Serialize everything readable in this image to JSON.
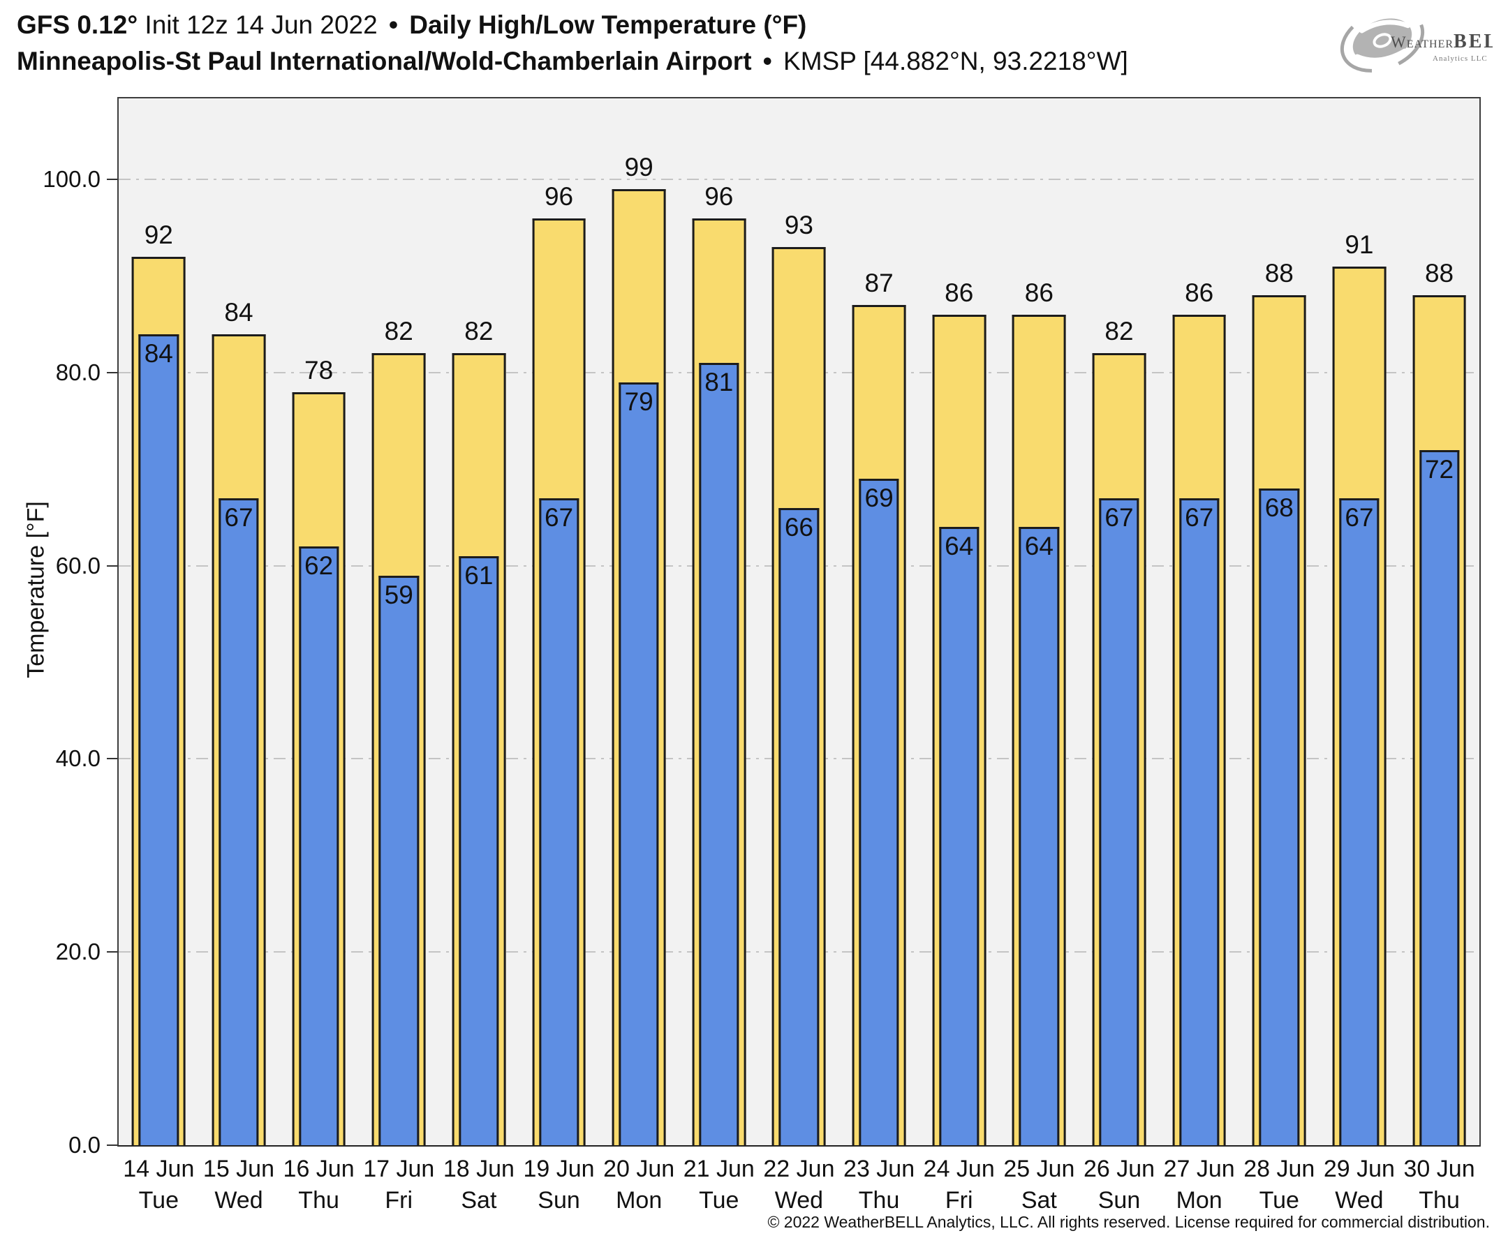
{
  "header": {
    "title_model": "GFS 0.12°",
    "title_init": " Init 12z 14 Jun 2022 ",
    "title_sep": "•",
    "title_main": " Daily High/Low Temperature (°F)",
    "subtitle_station": "Minneapolis-St Paul International/Wold-Chamberlain Airport ",
    "subtitle_sep": "•",
    "subtitle_id": " KMSP [44.882°N, 93.2218°W]"
  },
  "logo": {
    "brand_weather": "Weather",
    "brand_bell": "BELL",
    "subtext": "Analytics LLC"
  },
  "chart_data": {
    "type": "bar",
    "title": "Daily High/Low Temperature (°F)",
    "station": "Minneapolis-St Paul International/Wold-Chamberlain Airport (KMSP)",
    "ylabel": "Temperature [°F]",
    "ylim": [
      0,
      108.4
    ],
    "yticks": [
      0,
      20,
      40,
      60,
      80,
      100
    ],
    "ytick_labels": [
      "0.0",
      "20.0",
      "40.0",
      "60.0",
      "80.0",
      "100.0"
    ],
    "grid": "horizontal dash-dot at ticks above 0",
    "legend": "none",
    "categories": [
      {
        "date": "14 Jun",
        "day": "Tue"
      },
      {
        "date": "15 Jun",
        "day": "Wed"
      },
      {
        "date": "16 Jun",
        "day": "Thu"
      },
      {
        "date": "17 Jun",
        "day": "Fri"
      },
      {
        "date": "18 Jun",
        "day": "Sat"
      },
      {
        "date": "19 Jun",
        "day": "Sun"
      },
      {
        "date": "20 Jun",
        "day": "Mon"
      },
      {
        "date": "21 Jun",
        "day": "Tue"
      },
      {
        "date": "22 Jun",
        "day": "Wed"
      },
      {
        "date": "23 Jun",
        "day": "Thu"
      },
      {
        "date": "24 Jun",
        "day": "Fri"
      },
      {
        "date": "25 Jun",
        "day": "Sat"
      },
      {
        "date": "26 Jun",
        "day": "Sun"
      },
      {
        "date": "27 Jun",
        "day": "Mon"
      },
      {
        "date": "28 Jun",
        "day": "Tue"
      },
      {
        "date": "29 Jun",
        "day": "Wed"
      },
      {
        "date": "30 Jun",
        "day": "Thu"
      }
    ],
    "series": [
      {
        "name": "High",
        "color": "#F9DB6E",
        "values": [
          92,
          84,
          78,
          82,
          82,
          96,
          99,
          96,
          93,
          87,
          86,
          86,
          82,
          86,
          88,
          91,
          88
        ]
      },
      {
        "name": "Low",
        "color": "#5E8EE3",
        "values": [
          84,
          67,
          62,
          59,
          61,
          67,
          79,
          81,
          66,
          69,
          64,
          64,
          67,
          67,
          68,
          67,
          72
        ]
      }
    ],
    "colors": {
      "plot_background": "#f2f2f2",
      "gridline": "#c4c4c4",
      "bar_border": "#1c1c1c",
      "axis": "#3d3d3d"
    }
  },
  "footer": {
    "copyright": "© 2022 WeatherBELL Analytics, LLC. All rights reserved. License required for commercial distribution."
  }
}
